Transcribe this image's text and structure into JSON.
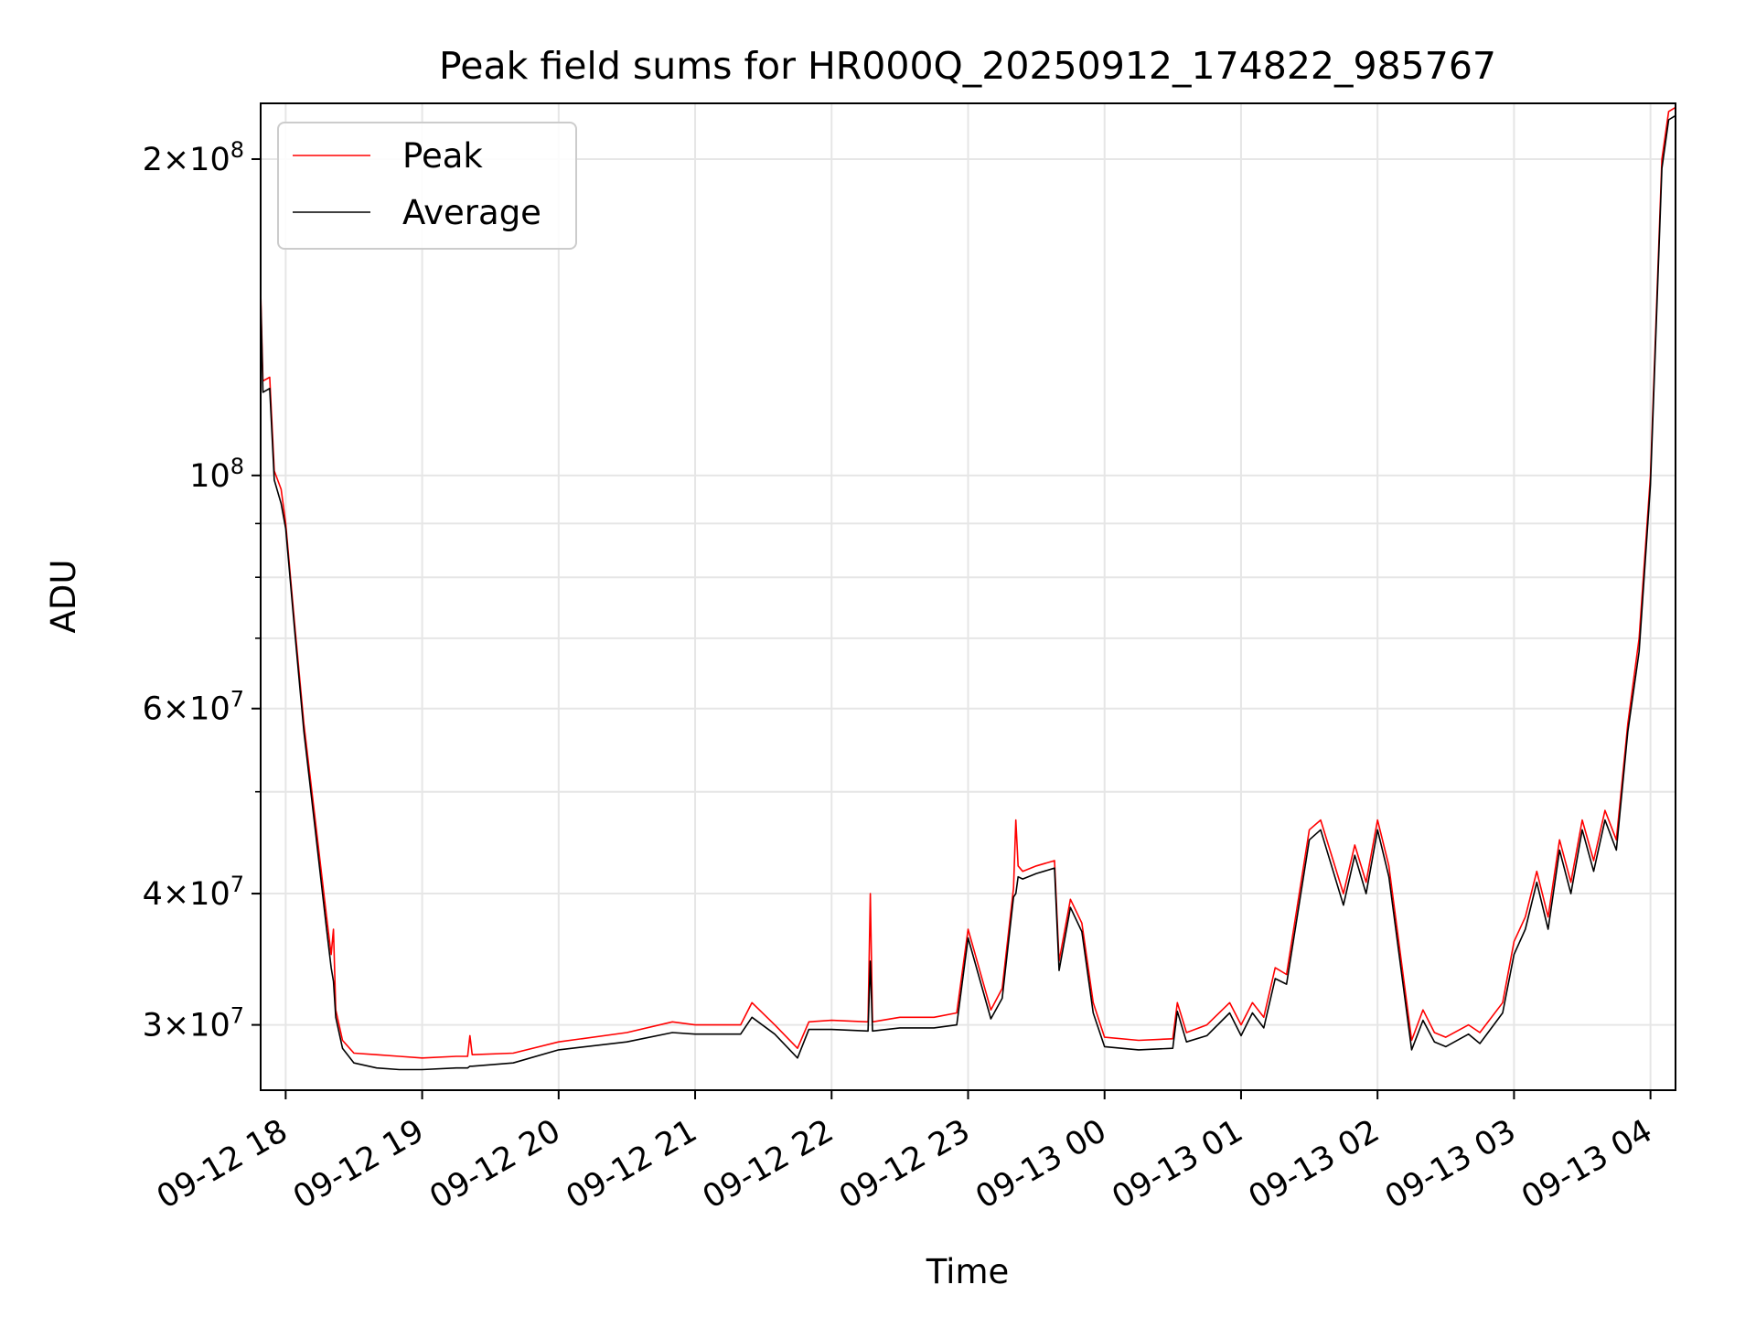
{
  "chart_data": {
    "type": "line",
    "title": "Peak field sums for HR000Q_20250912_174822_985767",
    "xlabel": "Time",
    "ylabel": "ADU",
    "yscale": "log",
    "ylim": [
      26000000,
      226000000
    ],
    "xlim": [
      "2025-09-12 17:49",
      "2025-09-13 04:11"
    ],
    "grid": true,
    "legend_position": "upper-left",
    "x_ticks": [
      {
        "t": "2025-09-12 18:00",
        "label": "09-12 18"
      },
      {
        "t": "2025-09-12 19:00",
        "label": "09-12 19"
      },
      {
        "t": "2025-09-12 20:00",
        "label": "09-12 20"
      },
      {
        "t": "2025-09-12 21:00",
        "label": "09-12 21"
      },
      {
        "t": "2025-09-12 22:00",
        "label": "09-12 22"
      },
      {
        "t": "2025-09-12 23:00",
        "label": "09-12 23"
      },
      {
        "t": "2025-09-13 00:00",
        "label": "09-13 00"
      },
      {
        "t": "2025-09-13 01:00",
        "label": "09-13 01"
      },
      {
        "t": "2025-09-13 02:00",
        "label": "09-13 02"
      },
      {
        "t": "2025-09-13 03:00",
        "label": "09-13 03"
      },
      {
        "t": "2025-09-13 04:00",
        "label": "09-13 04"
      }
    ],
    "y_ticks": [
      {
        "v": 30000000,
        "base": "3",
        "exp": "7"
      },
      {
        "v": 40000000,
        "base": "4",
        "exp": "7"
      },
      {
        "v": 60000000,
        "base": "6",
        "exp": "7"
      },
      {
        "v": 100000000,
        "base": "",
        "exp": "8"
      },
      {
        "v": 200000000,
        "base": "2",
        "exp": "8"
      }
    ],
    "y_minor_ticks": [
      50000000,
      70000000,
      80000000,
      90000000
    ],
    "series": [
      {
        "name": "Peak",
        "color": "#ff0000",
        "x": [
          "2025-09-12 17:49",
          "2025-09-12 17:50",
          "2025-09-12 17:53",
          "2025-09-12 17:55",
          "2025-09-12 17:58",
          "2025-09-12 18:00",
          "2025-09-12 18:04",
          "2025-09-12 18:08",
          "2025-09-12 18:13",
          "2025-09-12 18:18",
          "2025-09-12 18:20",
          "2025-09-12 18:21",
          "2025-09-12 18:22",
          "2025-09-12 18:25",
          "2025-09-12 18:30",
          "2025-09-12 18:40",
          "2025-09-12 18:50",
          "2025-09-12 19:00",
          "2025-09-12 19:15",
          "2025-09-12 19:20",
          "2025-09-12 19:21",
          "2025-09-12 19:22",
          "2025-09-12 19:40",
          "2025-09-12 20:00",
          "2025-09-12 20:30",
          "2025-09-12 20:50",
          "2025-09-12 21:00",
          "2025-09-12 21:20",
          "2025-09-12 21:25",
          "2025-09-12 21:35",
          "2025-09-12 21:45",
          "2025-09-12 21:50",
          "2025-09-12 22:00",
          "2025-09-12 22:16",
          "2025-09-12 22:17",
          "2025-09-12 22:18",
          "2025-09-12 22:30",
          "2025-09-12 22:45",
          "2025-09-12 22:55",
          "2025-09-12 23:00",
          "2025-09-12 23:10",
          "2025-09-12 23:15",
          "2025-09-12 23:20",
          "2025-09-12 23:21",
          "2025-09-12 23:22",
          "2025-09-12 23:24",
          "2025-09-12 23:30",
          "2025-09-12 23:38",
          "2025-09-12 23:40",
          "2025-09-12 23:45",
          "2025-09-12 23:50",
          "2025-09-12 23:55",
          "2025-09-13 00:00",
          "2025-09-13 00:15",
          "2025-09-13 00:30",
          "2025-09-13 00:32",
          "2025-09-13 00:36",
          "2025-09-13 00:45",
          "2025-09-13 00:55",
          "2025-09-13 01:00",
          "2025-09-13 01:05",
          "2025-09-13 01:10",
          "2025-09-13 01:15",
          "2025-09-13 01:20",
          "2025-09-13 01:30",
          "2025-09-13 01:35",
          "2025-09-13 01:45",
          "2025-09-13 01:50",
          "2025-09-13 01:55",
          "2025-09-13 02:00",
          "2025-09-13 02:05",
          "2025-09-13 02:15",
          "2025-09-13 02:20",
          "2025-09-13 02:25",
          "2025-09-13 02:30",
          "2025-09-13 02:40",
          "2025-09-13 02:45",
          "2025-09-13 02:55",
          "2025-09-13 03:00",
          "2025-09-13 03:05",
          "2025-09-13 03:10",
          "2025-09-13 03:15",
          "2025-09-13 03:20",
          "2025-09-13 03:25",
          "2025-09-13 03:30",
          "2025-09-13 03:35",
          "2025-09-13 03:40",
          "2025-09-13 03:45",
          "2025-09-13 03:50",
          "2025-09-13 03:55",
          "2025-09-13 04:00",
          "2025-09-13 04:05",
          "2025-09-13 04:08",
          "2025-09-13 04:11"
        ],
        "values": [
          150000000,
          123000000,
          124000000,
          101000000,
          97000000,
          90000000,
          72000000,
          58000000,
          47000000,
          38000000,
          35000000,
          37000000,
          31000000,
          29000000,
          28200000,
          28100000,
          28000000,
          27900000,
          28000000,
          28000000,
          29300000,
          28100000,
          28200000,
          28900000,
          29500000,
          30200000,
          30000000,
          30000000,
          31500000,
          30000000,
          28500000,
          30200000,
          30300000,
          30200000,
          40000000,
          30200000,
          30500000,
          30500000,
          30800000,
          37000000,
          31000000,
          32500000,
          40500000,
          47000000,
          42500000,
          42000000,
          42500000,
          43000000,
          34500000,
          39500000,
          37500000,
          31500000,
          29200000,
          29000000,
          29100000,
          31500000,
          29500000,
          30000000,
          31500000,
          30000000,
          31500000,
          30500000,
          34000000,
          33500000,
          46000000,
          47000000,
          40000000,
          44500000,
          41000000,
          47000000,
          42500000,
          29000000,
          31000000,
          29500000,
          29200000,
          30000000,
          29500000,
          31500000,
          36000000,
          38000000,
          42000000,
          38000000,
          45000000,
          41000000,
          47000000,
          43000000,
          48000000,
          45000000,
          58000000,
          70000000,
          100000000,
          200000000,
          222000000,
          224000000
        ]
      },
      {
        "name": "Average",
        "color": "#000000",
        "x": [
          "2025-09-12 17:49",
          "2025-09-12 17:50",
          "2025-09-12 17:53",
          "2025-09-12 17:55",
          "2025-09-12 17:58",
          "2025-09-12 18:00",
          "2025-09-12 18:04",
          "2025-09-12 18:08",
          "2025-09-12 18:13",
          "2025-09-12 18:18",
          "2025-09-12 18:20",
          "2025-09-12 18:21",
          "2025-09-12 18:22",
          "2025-09-12 18:25",
          "2025-09-12 18:30",
          "2025-09-12 18:40",
          "2025-09-12 18:50",
          "2025-09-12 19:00",
          "2025-09-12 19:15",
          "2025-09-12 19:20",
          "2025-09-12 19:21",
          "2025-09-12 19:22",
          "2025-09-12 19:40",
          "2025-09-12 20:00",
          "2025-09-12 20:30",
          "2025-09-12 20:50",
          "2025-09-12 21:00",
          "2025-09-12 21:20",
          "2025-09-12 21:25",
          "2025-09-12 21:35",
          "2025-09-12 21:45",
          "2025-09-12 21:50",
          "2025-09-12 22:00",
          "2025-09-12 22:16",
          "2025-09-12 22:17",
          "2025-09-12 22:18",
          "2025-09-12 22:30",
          "2025-09-12 22:45",
          "2025-09-12 22:55",
          "2025-09-12 23:00",
          "2025-09-12 23:10",
          "2025-09-12 23:15",
          "2025-09-12 23:20",
          "2025-09-12 23:21",
          "2025-09-12 23:22",
          "2025-09-12 23:24",
          "2025-09-12 23:30",
          "2025-09-12 23:38",
          "2025-09-12 23:40",
          "2025-09-12 23:45",
          "2025-09-12 23:50",
          "2025-09-12 23:55",
          "2025-09-13 00:00",
          "2025-09-13 00:15",
          "2025-09-13 00:30",
          "2025-09-13 00:32",
          "2025-09-13 00:36",
          "2025-09-13 00:45",
          "2025-09-13 00:55",
          "2025-09-13 01:00",
          "2025-09-13 01:05",
          "2025-09-13 01:10",
          "2025-09-13 01:15",
          "2025-09-13 01:20",
          "2025-09-13 01:30",
          "2025-09-13 01:35",
          "2025-09-13 01:45",
          "2025-09-13 01:50",
          "2025-09-13 01:55",
          "2025-09-13 02:00",
          "2025-09-13 02:05",
          "2025-09-13 02:15",
          "2025-09-13 02:20",
          "2025-09-13 02:25",
          "2025-09-13 02:30",
          "2025-09-13 02:40",
          "2025-09-13 02:45",
          "2025-09-13 02:55",
          "2025-09-13 03:00",
          "2025-09-13 03:05",
          "2025-09-13 03:10",
          "2025-09-13 03:15",
          "2025-09-13 03:20",
          "2025-09-13 03:25",
          "2025-09-13 03:30",
          "2025-09-13 03:35",
          "2025-09-13 03:40",
          "2025-09-13 03:45",
          "2025-09-13 03:50",
          "2025-09-13 03:55",
          "2025-09-13 04:00",
          "2025-09-13 04:05",
          "2025-09-13 04:08",
          "2025-09-13 04:11"
        ],
        "values": [
          148000000,
          120000000,
          121000000,
          99000000,
          94000000,
          89000000,
          71000000,
          57000000,
          46000000,
          37000000,
          34000000,
          33000000,
          30500000,
          28500000,
          27600000,
          27300000,
          27200000,
          27200000,
          27300000,
          27300000,
          27400000,
          27400000,
          27600000,
          28400000,
          28900000,
          29500000,
          29400000,
          29400000,
          30500000,
          29400000,
          27900000,
          29700000,
          29700000,
          29600000,
          34500000,
          29600000,
          29800000,
          29800000,
          30000000,
          36300000,
          30400000,
          31800000,
          39700000,
          40000000,
          41500000,
          41300000,
          41800000,
          42300000,
          33800000,
          38800000,
          36800000,
          30800000,
          28600000,
          28400000,
          28500000,
          30900000,
          28900000,
          29300000,
          30800000,
          29300000,
          30800000,
          29800000,
          33200000,
          32800000,
          45000000,
          46000000,
          39000000,
          43500000,
          40000000,
          46000000,
          41500000,
          28400000,
          30300000,
          28900000,
          28600000,
          29400000,
          28800000,
          30800000,
          35000000,
          37000000,
          41000000,
          37000000,
          44000000,
          40000000,
          46000000,
          42000000,
          47000000,
          44000000,
          57000000,
          68000000,
          98000000,
          196000000,
          218000000,
          220000000
        ]
      }
    ]
  }
}
